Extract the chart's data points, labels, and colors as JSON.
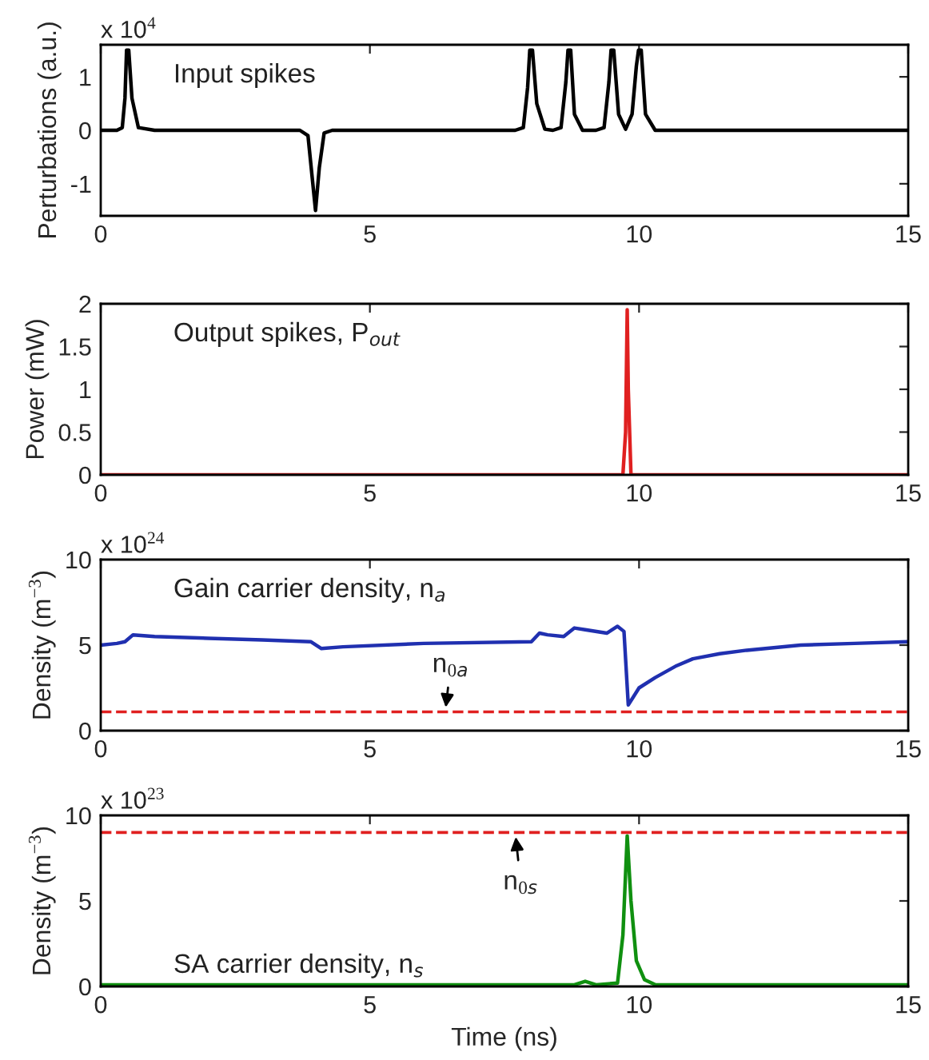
{
  "chart_data": [
    {
      "type": "line",
      "ylabel": "Perturbations (a.u.)",
      "xlim": [
        0,
        15
      ],
      "xticks": [
        0,
        5,
        10,
        15
      ],
      "ylim": [
        -1.6,
        1.6
      ],
      "yticks": [
        -1,
        0,
        1
      ],
      "annotations": [
        "Input spikes",
        "x 10$^{4}$"
      ],
      "series": [
        {
          "color": "#000000",
          "x": [
            0,
            0.3,
            0.4,
            0.45,
            0.48,
            0.52,
            0.58,
            0.7,
            1.0,
            3.7,
            3.85,
            3.93,
            3.99,
            4.06,
            4.15,
            4.3,
            7.7,
            7.85,
            7.93,
            7.97,
            8.02,
            8.1,
            8.25,
            8.4,
            8.55,
            8.64,
            8.68,
            8.73,
            8.8,
            8.95,
            9.2,
            9.35,
            9.44,
            9.48,
            9.53,
            9.62,
            9.75,
            9.87,
            9.95,
            9.99,
            10.04,
            10.12,
            10.3,
            15
          ],
          "values": [
            0,
            0,
            0.05,
            0.6,
            1.5,
            1.5,
            0.6,
            0.05,
            0,
            0,
            -0.1,
            -0.9,
            -1.5,
            -0.7,
            -0.05,
            0,
            0,
            0.05,
            0.8,
            1.5,
            1.5,
            0.5,
            0.02,
            0,
            0.05,
            0.9,
            1.5,
            1.5,
            0.3,
            0,
            0,
            0.05,
            0.9,
            1.5,
            1.5,
            0.3,
            0.02,
            0.3,
            1.2,
            1.5,
            1.5,
            0.3,
            0,
            0
          ]
        }
      ]
    },
    {
      "type": "line",
      "ylabel": "Power (mW)",
      "xlim": [
        0,
        15
      ],
      "xticks": [
        0,
        5,
        10,
        15
      ],
      "ylim": [
        0,
        2
      ],
      "yticks": [
        0,
        0.5,
        1,
        1.5,
        2
      ],
      "annotations": [
        "Output spikes, P$_{out}$"
      ],
      "series": [
        {
          "color": "#e02020",
          "x": [
            0,
            9.7,
            9.75,
            9.78,
            9.8,
            9.85,
            15
          ],
          "values": [
            0,
            0,
            0.5,
            1.93,
            1.0,
            0,
            0
          ]
        }
      ]
    },
    {
      "type": "line",
      "ylabel": "Density (m$^{−3}$)",
      "xlim": [
        0,
        15
      ],
      "xticks": [
        0,
        5,
        10,
        15
      ],
      "ylim": [
        0,
        10
      ],
      "yticks": [
        0,
        5,
        10
      ],
      "annotations": [
        "Gain carrier density, n$_{a}$",
        "x 10$^{24}$",
        {
          "text": "n$_{0a}$",
          "x": 6.4,
          "y": 1.1
        }
      ],
      "ref_lines": [
        {
          "axis": "y",
          "value": 1.1,
          "color": "#e02020",
          "line_style": "dashed"
        }
      ],
      "series": [
        {
          "color": "#2030b0",
          "x": [
            0,
            0.3,
            0.45,
            0.6,
            1,
            2,
            3,
            3.9,
            4.1,
            4.5,
            6,
            8,
            8.15,
            8.3,
            8.6,
            8.8,
            9,
            9.4,
            9.6,
            9.72,
            9.8,
            10,
            10.3,
            10.7,
            11,
            11.5,
            12,
            13,
            14,
            15
          ],
          "values": [
            5.0,
            5.1,
            5.2,
            5.6,
            5.5,
            5.4,
            5.3,
            5.2,
            4.8,
            4.9,
            5.1,
            5.2,
            5.7,
            5.6,
            5.5,
            6.0,
            5.9,
            5.7,
            6.1,
            5.8,
            1.5,
            2.5,
            3.1,
            3.8,
            4.2,
            4.5,
            4.7,
            5.0,
            5.1,
            5.2
          ]
        }
      ]
    },
    {
      "type": "line",
      "xlabel": "Time (ns)",
      "ylabel": "Density (m$^{−3}$)",
      "xlim": [
        0,
        15
      ],
      "xticks": [
        0,
        5,
        10,
        15
      ],
      "ylim": [
        0,
        10
      ],
      "yticks": [
        0,
        5,
        10
      ],
      "annotations": [
        "SA carrier density, n$_{s}$",
        "x 10$^{23}$",
        {
          "text": "n$_{0s}$",
          "x": 7.7,
          "y": 9
        }
      ],
      "ref_lines": [
        {
          "axis": "y",
          "value": 9,
          "color": "#e02020",
          "line_style": "dashed"
        }
      ],
      "series": [
        {
          "color": "#109010",
          "x": [
            0,
            8.8,
            9.0,
            9.2,
            9.6,
            9.7,
            9.78,
            9.85,
            9.95,
            10.1,
            10.3,
            15
          ],
          "values": [
            0.1,
            0.1,
            0.3,
            0.1,
            0.2,
            3,
            8.8,
            5,
            1.5,
            0.4,
            0.1,
            0.1
          ]
        }
      ]
    }
  ]
}
